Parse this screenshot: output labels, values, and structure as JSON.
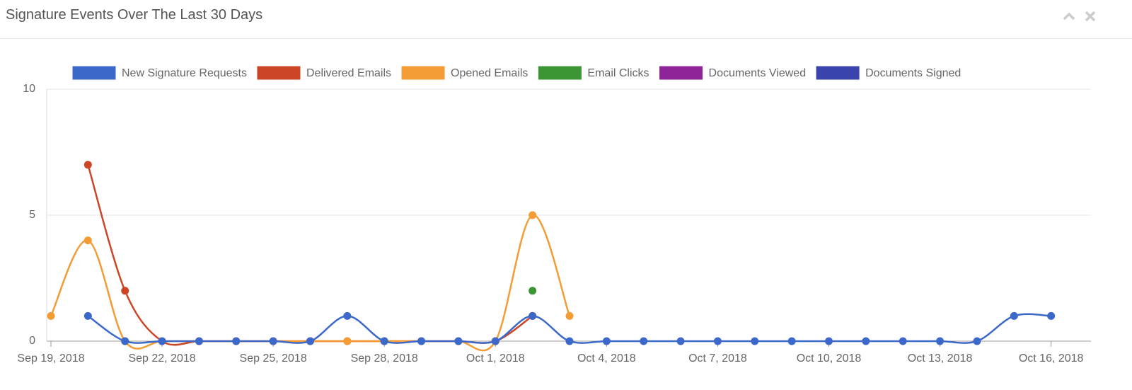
{
  "header": {
    "title": "Signature Events Over The Last 30 Days"
  },
  "chart_data": {
    "type": "line",
    "x": [
      "2018-09-19",
      "2018-09-20",
      "2018-09-21",
      "2018-09-22",
      "2018-09-23",
      "2018-09-24",
      "2018-09-25",
      "2018-09-26",
      "2018-09-27",
      "2018-09-28",
      "2018-09-29",
      "2018-09-30",
      "2018-10-01",
      "2018-10-02",
      "2018-10-03",
      "2018-10-04",
      "2018-10-05",
      "2018-10-06",
      "2018-10-07",
      "2018-10-08",
      "2018-10-09",
      "2018-10-10",
      "2018-10-11",
      "2018-10-12",
      "2018-10-13",
      "2018-10-14",
      "2018-10-15",
      "2018-10-16"
    ],
    "series": [
      {
        "name": "New Signature Requests",
        "color": "#3b68c9",
        "values": [
          null,
          1,
          0,
          0,
          0,
          0,
          0,
          0,
          1,
          0,
          0,
          0,
          0,
          1,
          0,
          0,
          0,
          0,
          0,
          0,
          0,
          0,
          0,
          0,
          0,
          0,
          1,
          1
        ]
      },
      {
        "name": "Delivered Emails",
        "color": "#cc4527",
        "values": [
          null,
          7,
          2,
          0,
          0,
          0,
          0,
          0,
          0,
          0,
          0,
          0,
          0,
          1,
          null,
          null,
          null,
          null,
          null,
          null,
          null,
          null,
          null,
          null,
          null,
          null,
          null,
          null
        ]
      },
      {
        "name": "Opened Emails",
        "color": "#f39c36",
        "values": [
          1,
          4,
          0,
          0,
          0,
          0,
          0,
          0,
          0,
          0,
          0,
          0,
          0,
          5,
          1,
          null,
          null,
          null,
          null,
          null,
          null,
          null,
          null,
          null,
          null,
          null,
          null,
          null
        ]
      },
      {
        "name": "Email Clicks",
        "color": "#3d9634",
        "values": [
          null,
          null,
          null,
          null,
          null,
          null,
          null,
          null,
          null,
          null,
          null,
          null,
          null,
          2,
          null,
          null,
          null,
          null,
          null,
          null,
          null,
          null,
          null,
          null,
          null,
          null,
          null,
          null
        ]
      },
      {
        "name": "Documents Viewed",
        "color": "#8e2497",
        "values": [
          null,
          null,
          null,
          null,
          null,
          null,
          null,
          null,
          null,
          null,
          null,
          null,
          null,
          null,
          null,
          null,
          null,
          null,
          null,
          null,
          null,
          null,
          null,
          null,
          null,
          null,
          null,
          null
        ]
      },
      {
        "name": "Documents Signed",
        "color": "#3a44ad",
        "values": [
          null,
          null,
          null,
          null,
          null,
          null,
          null,
          null,
          null,
          null,
          null,
          null,
          null,
          null,
          null,
          null,
          null,
          null,
          null,
          null,
          null,
          null,
          null,
          null,
          null,
          null,
          null,
          null
        ]
      }
    ],
    "xlim": [
      "2018-09-19",
      "2018-10-17"
    ],
    "xticks": [
      {
        "value": "2018-09-19",
        "label": "Sep 19, 2018"
      },
      {
        "value": "2018-09-22",
        "label": "Sep 22, 2018"
      },
      {
        "value": "2018-09-25",
        "label": "Sep 25, 2018"
      },
      {
        "value": "2018-09-28",
        "label": "Sep 28, 2018"
      },
      {
        "value": "2018-10-01",
        "label": "Oct 1, 2018"
      },
      {
        "value": "2018-10-04",
        "label": "Oct 4, 2018"
      },
      {
        "value": "2018-10-07",
        "label": "Oct 7, 2018"
      },
      {
        "value": "2018-10-10",
        "label": "Oct 10, 2018"
      },
      {
        "value": "2018-10-13",
        "label": "Oct 13, 2018"
      },
      {
        "value": "2018-10-16",
        "label": "Oct 16, 2018"
      }
    ],
    "ylim": [
      0,
      10
    ],
    "yticks": [
      0,
      5,
      10
    ],
    "grid": true,
    "legend": "top"
  }
}
